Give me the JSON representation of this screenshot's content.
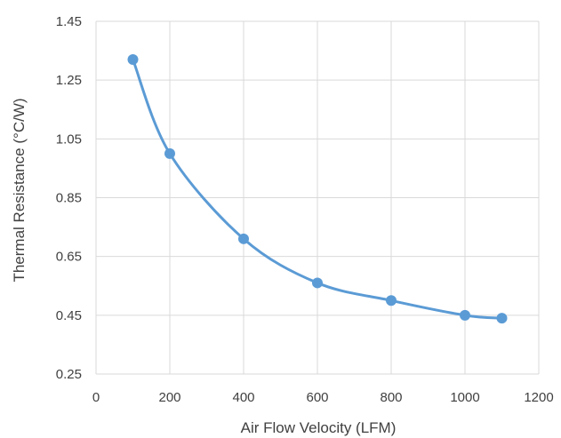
{
  "chart_data": {
    "type": "scatter",
    "title": "",
    "xlabel": "Air Flow Velocity (LFM)",
    "ylabel": "Thermal Resistance (°C/W)",
    "xlim": [
      0,
      1200
    ],
    "ylim": [
      0.25,
      1.45
    ],
    "x_ticks": [
      "0",
      "200",
      "400",
      "600",
      "800",
      "1000",
      "1200"
    ],
    "y_ticks": [
      "0.25",
      "0.45",
      "0.65",
      "0.85",
      "1.05",
      "1.25",
      "1.45"
    ],
    "grid": "both",
    "smooth_line": true,
    "series": [
      {
        "color": "#5b9bd5",
        "x": [
          100,
          200,
          400,
          600,
          800,
          1000,
          1100
        ],
        "y": [
          1.32,
          1.0,
          0.71,
          0.56,
          0.5,
          0.45,
          0.44
        ]
      }
    ]
  }
}
